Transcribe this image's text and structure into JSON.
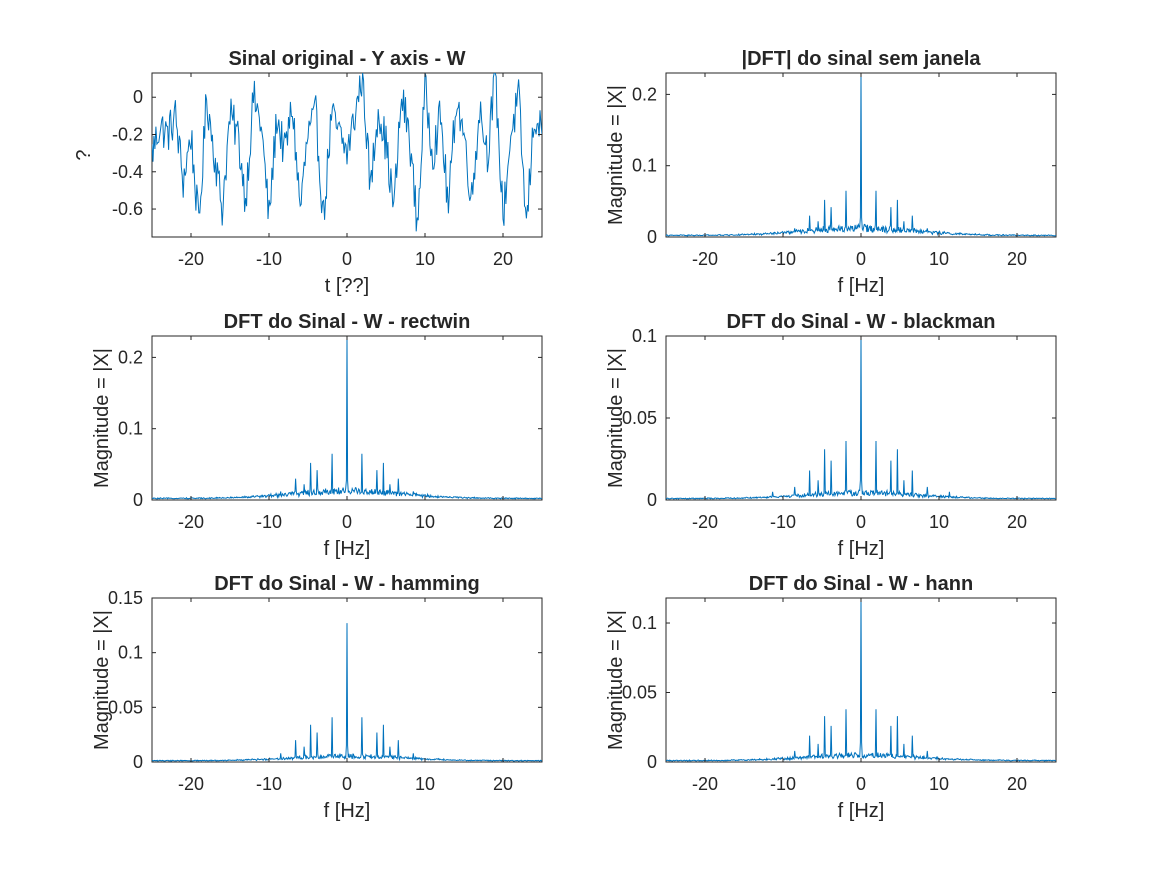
{
  "chart_data": [
    {
      "type": "line",
      "title": "Sinal original - Y axis - W",
      "xlabel": "t [??]",
      "ylabel": "?",
      "xlim": [
        -25,
        25
      ],
      "ylim": [
        -0.75,
        0.13
      ],
      "xticks": [
        -20,
        -10,
        0,
        10,
        20
      ],
      "xticklabels": [
        "-20",
        "-10",
        "0",
        "10",
        "20"
      ],
      "yticks": [
        0,
        -0.2,
        -0.4,
        -0.6
      ],
      "yticklabels": [
        "0",
        "-0.2",
        "-0.4",
        "-0.6"
      ],
      "grid": false,
      "signal": {
        "kind": "time",
        "baseline": -0.2,
        "min": -0.72,
        "max": 0.13
      },
      "series": [
        {
          "x": [
            -25,
            -24,
            -23,
            -22,
            -21,
            -20,
            -19,
            -18,
            -17,
            -16,
            -15,
            -14,
            -13,
            -12,
            -11,
            -10,
            -9,
            -8,
            -7,
            -6,
            -5,
            -4,
            -3,
            -2,
            -1,
            0,
            1,
            2,
            3,
            4,
            5,
            6,
            7,
            8,
            9,
            10,
            11,
            12,
            13,
            14,
            15,
            16,
            17,
            18,
            19,
            20,
            21,
            22,
            23,
            24,
            25
          ],
          "y": [
            -0.3,
            -0.15,
            -0.2,
            -0.1,
            -0.45,
            -0.2,
            -0.7,
            0.0,
            -0.3,
            -0.6,
            -0.1,
            -0.2,
            -0.55,
            0.0,
            -0.15,
            -0.65,
            -0.1,
            -0.3,
            -0.05,
            -0.6,
            -0.2,
            -0.1,
            -0.65,
            -0.1,
            -0.2,
            -0.3,
            -0.1,
            0.13,
            -0.5,
            -0.05,
            -0.25,
            -0.6,
            0.0,
            -0.2,
            -0.7,
            0.05,
            -0.3,
            -0.1,
            -0.6,
            0.0,
            -0.2,
            -0.55,
            -0.05,
            -0.3,
            0.12,
            -0.65,
            -0.2,
            0.0,
            -0.7,
            -0.1,
            -0.2
          ]
        }
      ]
    },
    {
      "type": "line",
      "title": "|DFT| do sinal sem janela",
      "xlabel": "f [Hz]",
      "ylabel": "Magnitude = |X|",
      "xlim": [
        -25,
        25
      ],
      "ylim": [
        0,
        0.23
      ],
      "xticks": [
        -20,
        -10,
        0,
        10,
        20
      ],
      "xticklabels": [
        "-20",
        "-10",
        "0",
        "10",
        "20"
      ],
      "yticks": [
        0,
        0.1,
        0.2
      ],
      "yticklabels": [
        "0",
        "0.1",
        "0.2"
      ],
      "grid": false,
      "signal": {
        "kind": "spectrum",
        "floor": 0.0015,
        "bump": 0.012,
        "bump_width": 7
      },
      "peaks": [
        {
          "f": 0,
          "mag": 0.23
        },
        {
          "f": -1.9,
          "mag": 0.065
        },
        {
          "f": 1.9,
          "mag": 0.065
        },
        {
          "f": -4.7,
          "mag": 0.052
        },
        {
          "f": 4.7,
          "mag": 0.052
        },
        {
          "f": -3.8,
          "mag": 0.042
        },
        {
          "f": 3.8,
          "mag": 0.042
        },
        {
          "f": -6.6,
          "mag": 0.03
        },
        {
          "f": 6.6,
          "mag": 0.03
        },
        {
          "f": -5.5,
          "mag": 0.022
        },
        {
          "f": 5.5,
          "mag": 0.022
        },
        {
          "f": -8.5,
          "mag": 0.012
        },
        {
          "f": 8.5,
          "mag": 0.012
        }
      ]
    },
    {
      "type": "line",
      "title": "DFT do Sinal - W - rectwin",
      "xlabel": "f [Hz]",
      "ylabel": "Magnitude = |X|",
      "xlim": [
        -25,
        25
      ],
      "ylim": [
        0,
        0.23
      ],
      "xticks": [
        -20,
        -10,
        0,
        10,
        20
      ],
      "xticklabels": [
        "-20",
        "-10",
        "0",
        "10",
        "20"
      ],
      "yticks": [
        0,
        0.1,
        0.2
      ],
      "yticklabels": [
        "0",
        "0.1",
        "0.2"
      ],
      "grid": false,
      "signal": {
        "kind": "spectrum",
        "floor": 0.0015,
        "bump": 0.012,
        "bump_width": 7
      },
      "peaks": [
        {
          "f": 0,
          "mag": 0.23
        },
        {
          "f": -1.9,
          "mag": 0.065
        },
        {
          "f": 1.9,
          "mag": 0.065
        },
        {
          "f": -4.7,
          "mag": 0.052
        },
        {
          "f": 4.7,
          "mag": 0.052
        },
        {
          "f": -3.8,
          "mag": 0.042
        },
        {
          "f": 3.8,
          "mag": 0.042
        },
        {
          "f": -6.6,
          "mag": 0.03
        },
        {
          "f": 6.6,
          "mag": 0.03
        },
        {
          "f": -5.5,
          "mag": 0.022
        },
        {
          "f": 5.5,
          "mag": 0.022
        },
        {
          "f": -8.5,
          "mag": 0.012
        },
        {
          "f": 8.5,
          "mag": 0.012
        }
      ]
    },
    {
      "type": "line",
      "title": "DFT do Sinal - W - blackman",
      "xlabel": "f [Hz]",
      "ylabel": "Magnitude = |X|",
      "xlim": [
        -25,
        25
      ],
      "ylim": [
        0,
        0.1
      ],
      "xticks": [
        -20,
        -10,
        0,
        10,
        20
      ],
      "xticklabels": [
        "-20",
        "-10",
        "0",
        "10",
        "20"
      ],
      "yticks": [
        0,
        0.05,
        0.1
      ],
      "yticklabels": [
        "0",
        "0.05",
        "0.1"
      ],
      "grid": false,
      "signal": {
        "kind": "spectrum",
        "floor": 0.0006,
        "bump": 0.004,
        "bump_width": 7
      },
      "peaks": [
        {
          "f": 0,
          "mag": 0.1
        },
        {
          "f": -1.9,
          "mag": 0.036
        },
        {
          "f": 1.9,
          "mag": 0.036
        },
        {
          "f": -4.7,
          "mag": 0.031
        },
        {
          "f": 4.7,
          "mag": 0.031
        },
        {
          "f": -3.8,
          "mag": 0.024
        },
        {
          "f": 3.8,
          "mag": 0.024
        },
        {
          "f": -6.6,
          "mag": 0.018
        },
        {
          "f": 6.6,
          "mag": 0.018
        },
        {
          "f": -5.5,
          "mag": 0.012
        },
        {
          "f": 5.5,
          "mag": 0.012
        },
        {
          "f": -8.5,
          "mag": 0.008
        },
        {
          "f": 8.5,
          "mag": 0.008
        },
        {
          "f": -11.3,
          "mag": 0.005
        },
        {
          "f": 11.3,
          "mag": 0.005
        }
      ]
    },
    {
      "type": "line",
      "title": "DFT do Sinal - W - hamming",
      "xlabel": "f [Hz]",
      "ylabel": "Magnitude = |X|",
      "xlim": [
        -25,
        25
      ],
      "ylim": [
        0,
        0.15
      ],
      "xticks": [
        -20,
        -10,
        0,
        10,
        20
      ],
      "xticklabels": [
        "-20",
        "-10",
        "0",
        "10",
        "20"
      ],
      "yticks": [
        0,
        0.05,
        0.1,
        0.15
      ],
      "yticklabels": [
        "0",
        "0.05",
        "0.1",
        "0.15"
      ],
      "grid": false,
      "signal": {
        "kind": "spectrum",
        "floor": 0.0008,
        "bump": 0.005,
        "bump_width": 7
      },
      "peaks": [
        {
          "f": 0,
          "mag": 0.127
        },
        {
          "f": -1.9,
          "mag": 0.041
        },
        {
          "f": 1.9,
          "mag": 0.041
        },
        {
          "f": -4.7,
          "mag": 0.034
        },
        {
          "f": 4.7,
          "mag": 0.034
        },
        {
          "f": -3.8,
          "mag": 0.027
        },
        {
          "f": 3.8,
          "mag": 0.027
        },
        {
          "f": -6.6,
          "mag": 0.02
        },
        {
          "f": 6.6,
          "mag": 0.02
        },
        {
          "f": -5.5,
          "mag": 0.014
        },
        {
          "f": 5.5,
          "mag": 0.014
        },
        {
          "f": -8.5,
          "mag": 0.008
        },
        {
          "f": 8.5,
          "mag": 0.008
        }
      ]
    },
    {
      "type": "line",
      "title": "DFT do Sinal - W - hann",
      "xlabel": "f [Hz]",
      "ylabel": "Magnitude = |X|",
      "xlim": [
        -25,
        25
      ],
      "ylim": [
        0,
        0.118
      ],
      "xticks": [
        -20,
        -10,
        0,
        10,
        20
      ],
      "xticklabels": [
        "-20",
        "-10",
        "0",
        "10",
        "20"
      ],
      "yticks": [
        0,
        0.05,
        0.1
      ],
      "yticklabels": [
        "0",
        "0.05",
        "0.1"
      ],
      "grid": false,
      "signal": {
        "kind": "spectrum",
        "floor": 0.0007,
        "bump": 0.0045,
        "bump_width": 7
      },
      "peaks": [
        {
          "f": 0,
          "mag": 0.118
        },
        {
          "f": -1.9,
          "mag": 0.038
        },
        {
          "f": 1.9,
          "mag": 0.038
        },
        {
          "f": -4.7,
          "mag": 0.033
        },
        {
          "f": 4.7,
          "mag": 0.033
        },
        {
          "f": -3.8,
          "mag": 0.026
        },
        {
          "f": 3.8,
          "mag": 0.026
        },
        {
          "f": -6.6,
          "mag": 0.019
        },
        {
          "f": 6.6,
          "mag": 0.019
        },
        {
          "f": -5.5,
          "mag": 0.013
        },
        {
          "f": 5.5,
          "mag": 0.013
        },
        {
          "f": -8.5,
          "mag": 0.008
        },
        {
          "f": 8.5,
          "mag": 0.008
        }
      ]
    }
  ],
  "style": {
    "line_color": "#0072bd",
    "axis_color": "#262626",
    "background": "#ffffff"
  }
}
